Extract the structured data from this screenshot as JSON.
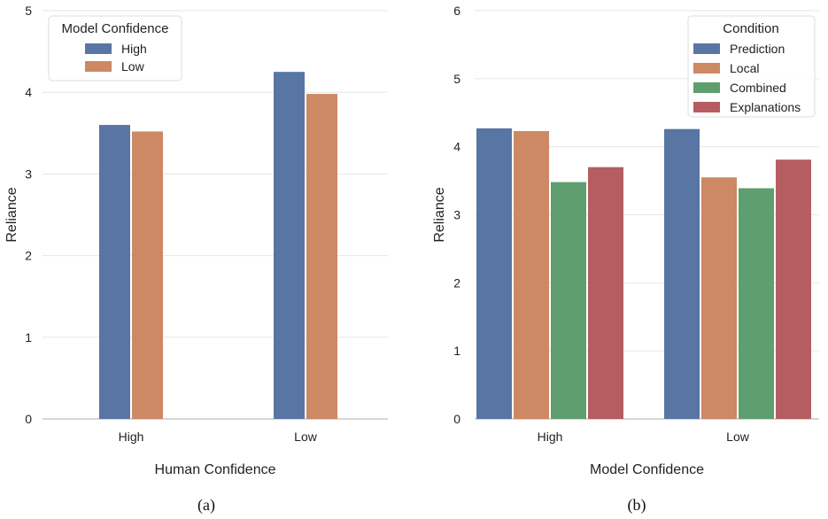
{
  "chart_data": [
    {
      "type": "bar",
      "caption": "(a)",
      "xlabel": "Human Confidence",
      "ylabel": "Reliance",
      "ylim": [
        0,
        5
      ],
      "yticks": [
        "0",
        "1",
        "2",
        "3",
        "4",
        "5"
      ],
      "categories": [
        "High",
        "Low"
      ],
      "legend": {
        "title": "Model Confidence",
        "position": "top-left"
      },
      "grid": true,
      "series": [
        {
          "name": "High",
          "color": "#5875a4",
          "values": [
            3.6,
            4.25
          ]
        },
        {
          "name": "Low",
          "color": "#cc8963",
          "values": [
            3.52,
            3.98
          ]
        }
      ]
    },
    {
      "type": "bar",
      "caption": "(b)",
      "xlabel": "Model Confidence",
      "ylabel": "Reliance",
      "ylim": [
        0,
        6
      ],
      "yticks": [
        "0",
        "1",
        "2",
        "3",
        "4",
        "5",
        "6"
      ],
      "categories": [
        "High",
        "Low"
      ],
      "legend": {
        "title": "Condition",
        "position": "top-right"
      },
      "grid": true,
      "series": [
        {
          "name": "Prediction",
          "color": "#5875a4",
          "values": [
            4.27,
            4.26
          ]
        },
        {
          "name": "Local",
          "color": "#cc8963",
          "values": [
            4.23,
            3.55
          ]
        },
        {
          "name": "Combined",
          "color": "#5f9e6e",
          "values": [
            3.48,
            3.39
          ]
        },
        {
          "name": "Explanations",
          "color": "#b55d60",
          "values": [
            3.7,
            3.81
          ]
        }
      ]
    }
  ]
}
